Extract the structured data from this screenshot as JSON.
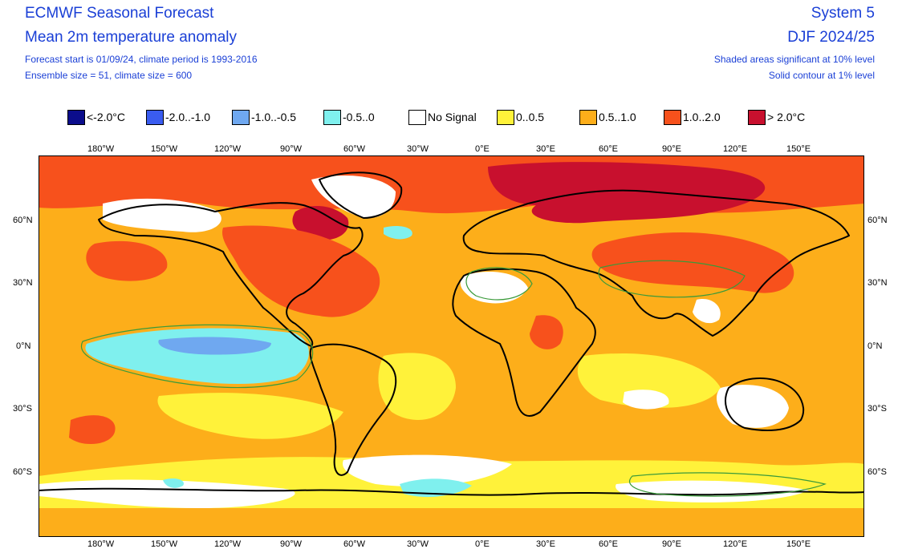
{
  "header": {
    "title": "ECMWF Seasonal Forecast",
    "subtitle": "Mean 2m temperature anomaly",
    "info1": "Forecast start is 01/09/24, climate period is 1993-2016",
    "info2": "Ensemble size = 51, climate size = 600",
    "system": "System 5",
    "season": "DJF 2024/25",
    "note1": "Shaded areas significant at 10% level",
    "note2": "Solid contour at 1% level"
  },
  "legend": [
    {
      "label": "<-2.0°C",
      "color": "#0b0d8c"
    },
    {
      "label": "-2.0..-1.0",
      "color": "#3a5cf0"
    },
    {
      "label": "-1.0..-0.5",
      "color": "#6fa8f0"
    },
    {
      "label": "-0.5..0",
      "color": "#7ff0ee"
    },
    {
      "label": "No Signal",
      "color": "#ffffff"
    },
    {
      "label": "0..0.5",
      "color": "#fff23a"
    },
    {
      "label": "0.5..1.0",
      "color": "#fdae1a"
    },
    {
      "label": "1.0..2.0",
      "color": "#f7511c"
    },
    {
      "label": "> 2.0°C",
      "color": "#c8102e"
    }
  ],
  "lon_labels": [
    "180°W",
    "150°W",
    "120°W",
    "90°W",
    "60°W",
    "30°W",
    "0°E",
    "30°E",
    "60°E",
    "90°E",
    "120°E",
    "150°E"
  ],
  "lat_labels": [
    "60°N",
    "30°N",
    "0°N",
    "30°S",
    "60°S"
  ]
}
